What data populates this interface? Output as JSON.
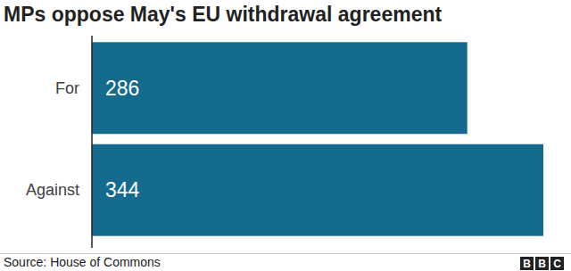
{
  "chart_data": {
    "type": "bar",
    "orientation": "horizontal",
    "title": "MPs oppose May's EU withdrawal agreement",
    "categories": [
      "For",
      "Against"
    ],
    "values": [
      286,
      344
    ],
    "color": "#156b8e",
    "data_labels": true,
    "tick_labels": "y",
    "source": "Source: House of Commons",
    "annotations": [
      "BBC"
    ]
  }
}
